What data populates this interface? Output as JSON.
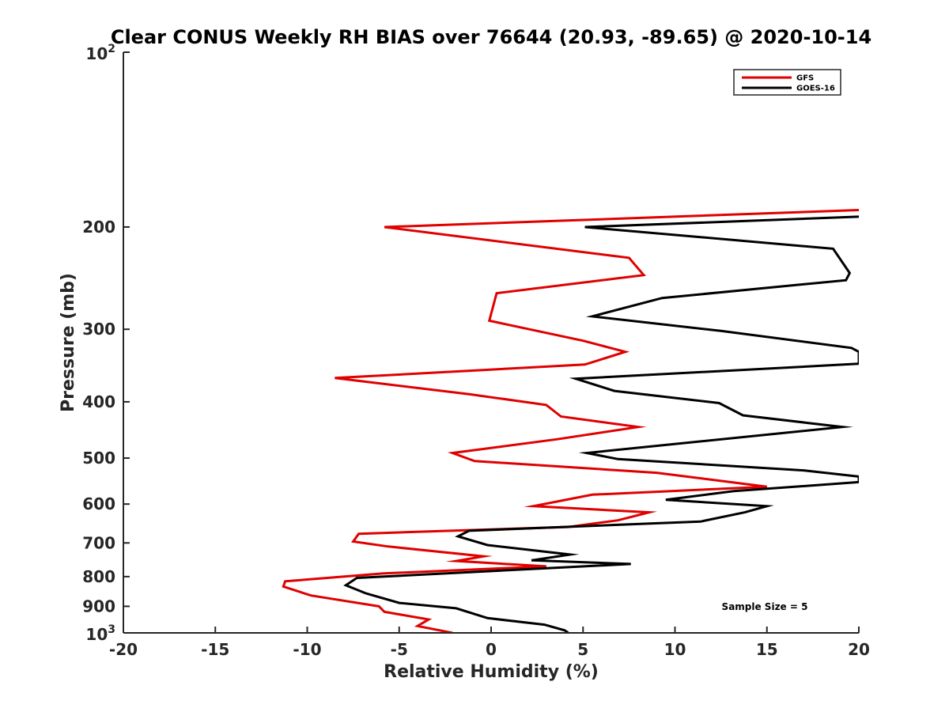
{
  "chart_data": {
    "type": "line",
    "title": "Clear CONUS Weekly RH BIAS over 76644 (20.93, -89.65) @ 2020-10-14",
    "xlabel": "Relative Humidity (%)",
    "ylabel": "Pressure (mb)",
    "xlim": [
      -20,
      20
    ],
    "ylim": [
      100,
      1000
    ],
    "yscale": "log",
    "y_reversed": true,
    "x_ticks": [
      -20,
      -15,
      -10,
      -5,
      0,
      5,
      10,
      15,
      20
    ],
    "x_tick_labels": [
      "-20",
      "-15",
      "-10",
      "-5",
      "0",
      "5",
      "10",
      "15",
      "20"
    ],
    "y_ticks": [
      100,
      200,
      300,
      400,
      500,
      600,
      700,
      800,
      900,
      1000
    ],
    "y_tick_labels": [
      "",
      "200",
      "300",
      "400",
      "500",
      "600",
      "700",
      "800",
      "900",
      ""
    ],
    "y_tick_exp_labels": [
      {
        "value": 100,
        "base": "10",
        "exp": "2"
      },
      {
        "value": 1000,
        "base": "10",
        "exp": "3"
      }
    ],
    "legend_position": "top-right",
    "annotation": "Sample Size = 5",
    "series": [
      {
        "name": "GFS",
        "color": "#e00000",
        "points": [
          [
            20.0,
            187
          ],
          [
            -5.8,
            200
          ],
          [
            7.5,
            226
          ],
          [
            8.3,
            242
          ],
          [
            0.3,
            260
          ],
          [
            -0.1,
            290
          ],
          [
            5.0,
            314
          ],
          [
            7.3,
            328
          ],
          [
            5.1,
            345
          ],
          [
            -8.5,
            364
          ],
          [
            -1.2,
            388
          ],
          [
            3.0,
            405
          ],
          [
            3.8,
            424
          ],
          [
            8.0,
            442
          ],
          [
            3.6,
            464
          ],
          [
            -2.1,
            490
          ],
          [
            -0.9,
            506
          ],
          [
            9.0,
            530
          ],
          [
            15.0,
            560
          ],
          [
            5.5,
            578
          ],
          [
            2.3,
            605
          ],
          [
            8.6,
            620
          ],
          [
            6.9,
            640
          ],
          [
            4.2,
            657
          ],
          [
            -7.2,
            675
          ],
          [
            -7.5,
            696
          ],
          [
            -5.6,
            710
          ],
          [
            -0.4,
            738
          ],
          [
            -1.9,
            752
          ],
          [
            3.0,
            768
          ],
          [
            -5.9,
            790
          ],
          [
            -11.2,
            815
          ],
          [
            -11.3,
            832
          ],
          [
            -9.8,
            862
          ],
          [
            -6.1,
            900
          ],
          [
            -5.8,
            920
          ],
          [
            -3.4,
            948
          ],
          [
            -4.0,
            973
          ],
          [
            -2.1,
            1000
          ]
        ]
      },
      {
        "name": "GOES-16",
        "color": "#000000",
        "points": [
          [
            20.0,
            192
          ],
          [
            5.1,
            200
          ],
          [
            18.6,
            218
          ],
          [
            19.5,
            240
          ],
          [
            19.3,
            247
          ],
          [
            9.3,
            265
          ],
          [
            5.5,
            285
          ],
          [
            12.5,
            302
          ],
          [
            19.6,
            323
          ],
          [
            20.0,
            328
          ],
          [
            20.0,
            344
          ],
          [
            4.6,
            365
          ],
          [
            6.7,
            383
          ],
          [
            12.4,
            402
          ],
          [
            13.7,
            422
          ],
          [
            19.1,
            442
          ],
          [
            5.2,
            490
          ],
          [
            6.9,
            502
          ],
          [
            17.0,
            525
          ],
          [
            20.0,
            538
          ],
          [
            20.0,
            550
          ],
          [
            13.2,
            570
          ],
          [
            9.5,
            590
          ],
          [
            15.0,
            605
          ],
          [
            13.8,
            620
          ],
          [
            11.4,
            643
          ],
          [
            -1.2,
            667
          ],
          [
            -1.8,
            682
          ],
          [
            -0.2,
            706
          ],
          [
            4.3,
            733
          ],
          [
            2.2,
            750
          ],
          [
            7.6,
            761
          ],
          [
            -7.3,
            804
          ],
          [
            -7.9,
            828
          ],
          [
            -6.8,
            855
          ],
          [
            -5.0,
            888
          ],
          [
            -1.9,
            907
          ],
          [
            -0.2,
            943
          ],
          [
            2.9,
            968
          ],
          [
            4.0,
            990
          ],
          [
            4.2,
            1000
          ]
        ]
      }
    ]
  }
}
